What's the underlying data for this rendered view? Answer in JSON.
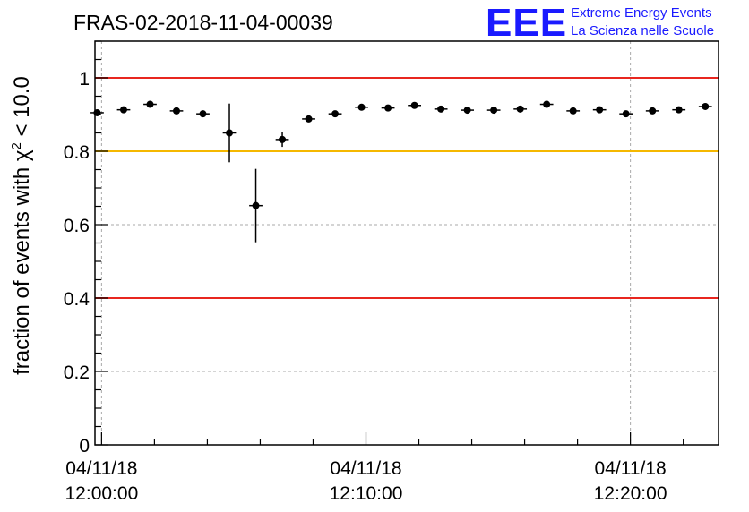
{
  "chart_data": {
    "type": "scatter",
    "title": "FRAS-02-2018-11-04-00039",
    "ylabel": {
      "prefix": "fraction of events with ",
      "chi": "χ",
      "sup": "2",
      "suffix": " < 10.0"
    },
    "xlabel": "",
    "ylim": [
      0,
      1.1
    ],
    "xlim": [
      "2018-11-04 11:59:45",
      "2018-11-04 12:23:20"
    ],
    "y_ticks": [
      {
        "value": 0,
        "label": "0"
      },
      {
        "value": 0.2,
        "label": "0.2"
      },
      {
        "value": 0.4,
        "label": "0.4"
      },
      {
        "value": 0.6,
        "label": "0.6"
      },
      {
        "value": 0.8,
        "label": "0.8"
      },
      {
        "value": 1,
        "label": "1"
      }
    ],
    "x_ticks": [
      {
        "time": "2018-11-04 12:00:00",
        "date_label": "04/11/18",
        "time_label": "12:00:00"
      },
      {
        "time": "2018-11-04 12:10:00",
        "date_label": "04/11/18",
        "time_label": "12:10:00"
      },
      {
        "time": "2018-11-04 12:20:00",
        "date_label": "04/11/18",
        "time_label": "12:20:00"
      }
    ],
    "grid": true,
    "reference_lines": [
      {
        "y": 1.0,
        "color": "#e8261f"
      },
      {
        "y": 0.8,
        "color": "#f5b800"
      },
      {
        "y": 0.4,
        "color": "#e8261f"
      }
    ],
    "points": [
      {
        "x": "2018-11-04 11:59:50",
        "y": 0.905,
        "err": 0.008
      },
      {
        "x": "2018-11-04 12:00:50",
        "y": 0.913,
        "err": 0.007
      },
      {
        "x": "2018-11-04 12:01:50",
        "y": 0.928,
        "err": 0.007
      },
      {
        "x": "2018-11-04 12:02:50",
        "y": 0.91,
        "err": 0.007
      },
      {
        "x": "2018-11-04 12:03:50",
        "y": 0.902,
        "err": 0.007
      },
      {
        "x": "2018-11-04 12:04:50",
        "y": 0.85,
        "err": 0.08
      },
      {
        "x": "2018-11-04 12:05:50",
        "y": 0.652,
        "err": 0.1
      },
      {
        "x": "2018-11-04 12:06:50",
        "y": 0.832,
        "err": 0.02
      },
      {
        "x": "2018-11-04 12:07:50",
        "y": 0.888,
        "err": 0.007
      },
      {
        "x": "2018-11-04 12:08:50",
        "y": 0.902,
        "err": 0.007
      },
      {
        "x": "2018-11-04 12:09:50",
        "y": 0.92,
        "err": 0.007
      },
      {
        "x": "2018-11-04 12:10:50",
        "y": 0.918,
        "err": 0.007
      },
      {
        "x": "2018-11-04 12:11:50",
        "y": 0.925,
        "err": 0.007
      },
      {
        "x": "2018-11-04 12:12:50",
        "y": 0.915,
        "err": 0.007
      },
      {
        "x": "2018-11-04 12:13:50",
        "y": 0.912,
        "err": 0.007
      },
      {
        "x": "2018-11-04 12:14:50",
        "y": 0.912,
        "err": 0.007
      },
      {
        "x": "2018-11-04 12:15:50",
        "y": 0.915,
        "err": 0.007
      },
      {
        "x": "2018-11-04 12:16:50",
        "y": 0.928,
        "err": 0.007
      },
      {
        "x": "2018-11-04 12:17:50",
        "y": 0.91,
        "err": 0.007
      },
      {
        "x": "2018-11-04 12:18:50",
        "y": 0.913,
        "err": 0.007
      },
      {
        "x": "2018-11-04 12:19:50",
        "y": 0.902,
        "err": 0.007
      },
      {
        "x": "2018-11-04 12:20:50",
        "y": 0.91,
        "err": 0.007
      },
      {
        "x": "2018-11-04 12:21:50",
        "y": 0.913,
        "err": 0.007
      },
      {
        "x": "2018-11-04 12:22:50",
        "y": 0.922,
        "err": 0.007
      }
    ]
  },
  "logo": {
    "letters": "EEE",
    "line1": "Extreme Energy Events",
    "line2": "La Scienza nelle Scuole"
  }
}
